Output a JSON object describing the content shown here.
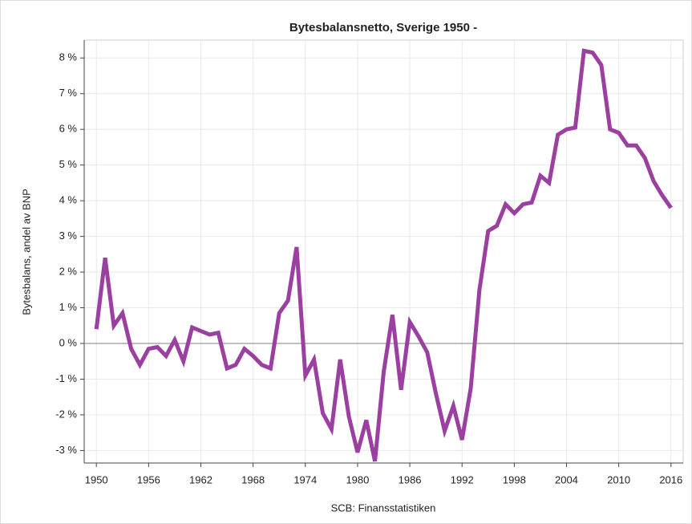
{
  "chart_data": {
    "type": "line",
    "title": "Bytesbalansnetto, Sverige 1950 -",
    "x_label": "SCB: Finansstatistiken",
    "y_label": "Bytesbalans, andel av BNP",
    "x": [
      1950,
      1951,
      1952,
      1953,
      1954,
      1955,
      1956,
      1957,
      1958,
      1959,
      1960,
      1961,
      1962,
      1963,
      1964,
      1965,
      1966,
      1967,
      1968,
      1969,
      1970,
      1971,
      1972,
      1973,
      1974,
      1975,
      1976,
      1977,
      1978,
      1979,
      1980,
      1981,
      1982,
      1983,
      1984,
      1985,
      1986,
      1987,
      1988,
      1989,
      1990,
      1991,
      1992,
      1993,
      1994,
      1995,
      1996,
      1997,
      1998,
      1999,
      2000,
      2001,
      2002,
      2003,
      2004,
      2005,
      2006,
      2007,
      2008,
      2009,
      2010,
      2011,
      2012,
      2013,
      2014,
      2015,
      2016
    ],
    "values": [
      0.4,
      2.4,
      0.5,
      0.85,
      -0.15,
      -0.6,
      -0.15,
      -0.1,
      -0.35,
      0.1,
      -0.5,
      0.45,
      0.35,
      0.25,
      0.3,
      -0.7,
      -0.6,
      -0.15,
      -0.35,
      -0.6,
      -0.7,
      0.85,
      1.2,
      2.7,
      -0.9,
      -0.45,
      -1.95,
      -2.4,
      -0.45,
      -2.05,
      -3.05,
      -2.15,
      -3.3,
      -0.8,
      0.8,
      -1.3,
      0.6,
      0.2,
      -0.25,
      -1.4,
      -2.45,
      -1.75,
      -2.7,
      -1.25,
      1.5,
      3.15,
      3.3,
      3.9,
      3.65,
      3.9,
      3.95,
      4.7,
      4.5,
      5.85,
      6.0,
      6.05,
      8.2,
      8.15,
      7.8,
      6.0,
      5.9,
      5.55,
      5.55,
      5.2,
      4.55,
      4.15,
      3.8
    ],
    "color": "#9b3fa0",
    "xlim": [
      1948.6,
      2017.4
    ],
    "xticks": [
      1950,
      1956,
      1962,
      1968,
      1974,
      1980,
      1986,
      1992,
      1998,
      2004,
      2010,
      2016
    ],
    "ylim": [
      -3.35,
      8.5
    ],
    "yticks": [
      {
        "value": -3,
        "label": "-3 %"
      },
      {
        "value": -2,
        "label": "-2 %"
      },
      {
        "value": -1,
        "label": "-1 %"
      },
      {
        "value": 0,
        "label": "0 %"
      },
      {
        "value": 1,
        "label": "1 %"
      },
      {
        "value": 2,
        "label": "2 %"
      },
      {
        "value": 3,
        "label": "3 %"
      },
      {
        "value": 4,
        "label": "4 %"
      },
      {
        "value": 5,
        "label": "5 %"
      },
      {
        "value": 6,
        "label": "6 %"
      },
      {
        "value": 7,
        "label": "7 %"
      },
      {
        "value": 8,
        "label": "8 %"
      }
    ],
    "grid": true,
    "zero_line": true
  }
}
